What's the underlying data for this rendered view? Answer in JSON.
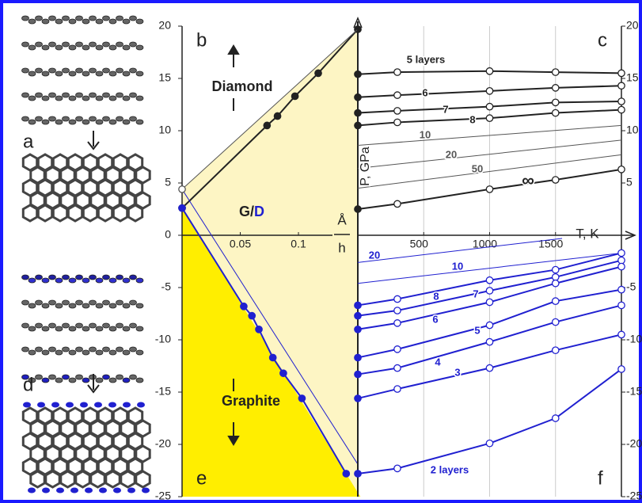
{
  "structure_labels": [
    "a",
    "d"
  ],
  "chart_data": [
    {
      "type": "line",
      "panel_labels": [
        "b",
        "e"
      ],
      "annotations": [
        "Diamond",
        "Graphite"
      ],
      "phase_label": [
        "G",
        "/",
        "D"
      ],
      "x_label": [
        "Å",
        "h"
      ],
      "xlim": [
        0,
        0.151
      ],
      "ylim": [
        -25,
        20
      ],
      "xticks": [
        0.05,
        0.1
      ],
      "yticks": [
        -25,
        -20,
        -15,
        -10,
        -5,
        0,
        5,
        10,
        15,
        20
      ],
      "series": [
        {
          "color": "#222222",
          "line_width": 2,
          "marker": "filled",
          "x": [
            0,
            0.073,
            0.082,
            0.097,
            0.117,
            0.151
          ],
          "values": [
            2.6,
            10.5,
            11.4,
            13.3,
            15.5,
            19.7
          ]
        },
        {
          "color": "#2020d0",
          "line_width": 2,
          "marker": "filled",
          "x": [
            0,
            0.053,
            0.06,
            0.066,
            0.078,
            0.087,
            0.103,
            0.141
          ],
          "values": [
            2.6,
            -6.8,
            -7.7,
            -9.0,
            -11.7,
            -13.2,
            -15.6,
            -22.8
          ]
        },
        {
          "color": "#555555",
          "line_width": 1,
          "marker": "none",
          "x": [
            0,
            0.151
          ],
          "values": [
            4.4,
            19.7
          ]
        },
        {
          "color": "#2020d0",
          "line_width": 1,
          "marker": "none",
          "x": [
            0,
            0.151
          ],
          "values": [
            4.4,
            -21.9
          ]
        },
        {
          "color": "#555555",
          "line_width": 0,
          "marker": "open",
          "x": [
            0
          ],
          "values": [
            4.4
          ]
        }
      ]
    },
    {
      "type": "line",
      "panel_labels": [
        "c",
        "f"
      ],
      "x_label": "T, K",
      "y_label": "P, GPa",
      "xlim": [
        0,
        2000
      ],
      "ylim": [
        -25,
        20
      ],
      "xticks": [
        500,
        1000,
        1500
      ],
      "yticks": [
        -25,
        -20,
        -15,
        -10,
        -5,
        5,
        10,
        15,
        20
      ],
      "grid": true,
      "series": [
        {
          "label": "5 layers",
          "color": "#222222",
          "line_width": 2,
          "marker": "first-filled",
          "x": [
            0,
            300,
            1000,
            1500,
            2000
          ],
          "values": [
            15.4,
            15.6,
            15.7,
            15.6,
            15.5
          ]
        },
        {
          "label": "6",
          "color": "#222222",
          "line_width": 2,
          "marker": "first-filled",
          "x": [
            0,
            300,
            1000,
            1500,
            2000
          ],
          "values": [
            13.2,
            13.4,
            13.8,
            14.1,
            14.3
          ]
        },
        {
          "label": "7",
          "color": "#222222",
          "line_width": 2,
          "marker": "first-filled",
          "x": [
            0,
            300,
            1000,
            1500,
            2000
          ],
          "values": [
            11.7,
            11.9,
            12.3,
            12.7,
            12.8
          ]
        },
        {
          "label": "8",
          "color": "#222222",
          "line_width": 2,
          "marker": "first-filled",
          "x": [
            0,
            300,
            1000,
            1500,
            2000
          ],
          "values": [
            10.5,
            10.8,
            11.2,
            11.7,
            12.0
          ]
        },
        {
          "label": "10",
          "color": "#555555",
          "line_width": 1,
          "marker": "none",
          "x": [
            0,
            2000
          ],
          "values": [
            8.6,
            10.5
          ]
        },
        {
          "label": "20",
          "color": "#555555",
          "line_width": 1,
          "marker": "none",
          "x": [
            0,
            2000
          ],
          "values": [
            6.4,
            9.1
          ]
        },
        {
          "label": "50",
          "color": "#555555",
          "line_width": 1,
          "marker": "none",
          "x": [
            0,
            2000
          ],
          "values": [
            4.5,
            7.7
          ]
        },
        {
          "label": "∞",
          "color": "#222222",
          "line_width": 2,
          "marker": "first-filled",
          "x": [
            0,
            300,
            1000,
            1500,
            2000
          ],
          "values": [
            2.5,
            3.0,
            4.4,
            5.3,
            6.3
          ]
        },
        {
          "label": "20",
          "color": "#2020d0",
          "line_width": 1,
          "marker": "none",
          "x": [
            0,
            1550
          ],
          "values": [
            -2.6,
            -0.3
          ]
        },
        {
          "label": "10",
          "color": "#2020d0",
          "line_width": 1,
          "marker": "none",
          "x": [
            0,
            2000
          ],
          "values": [
            -4.6,
            -1.7
          ]
        },
        {
          "label": "8",
          "color": "#2020d0",
          "line_width": 2,
          "marker": "first-filled",
          "x": [
            0,
            300,
            1000,
            1500,
            2000
          ],
          "values": [
            -6.7,
            -6.1,
            -4.3,
            -3.3,
            -1.7
          ]
        },
        {
          "label": "7",
          "color": "#2020d0",
          "line_width": 2,
          "marker": "first-filled",
          "x": [
            0,
            300,
            1000,
            1500,
            2000
          ],
          "values": [
            -7.7,
            -7.2,
            -5.3,
            -4.0,
            -2.4
          ]
        },
        {
          "label": "6",
          "color": "#2020d0",
          "line_width": 2,
          "marker": "first-filled",
          "x": [
            0,
            300,
            1000,
            1500,
            2000
          ],
          "values": [
            -9.0,
            -8.4,
            -6.4,
            -4.6,
            -3.0
          ]
        },
        {
          "label": "5",
          "color": "#2020d0",
          "line_width": 2,
          "marker": "first-filled",
          "x": [
            0,
            300,
            1000,
            1500,
            2000
          ],
          "values": [
            -11.7,
            -10.9,
            -8.6,
            -6.3,
            -5.2
          ]
        },
        {
          "label": "4",
          "color": "#2020d0",
          "line_width": 2,
          "marker": "first-filled",
          "x": [
            0,
            300,
            1000,
            1500,
            2000
          ],
          "values": [
            -13.3,
            -12.7,
            -10.2,
            -8.3,
            -6.7
          ]
        },
        {
          "label": "3",
          "color": "#2020d0",
          "line_width": 2,
          "marker": "first-filled",
          "x": [
            0,
            300,
            1000,
            1500,
            2000
          ],
          "values": [
            -15.6,
            -14.7,
            -12.7,
            -11.0,
            -9.5
          ]
        },
        {
          "label": "2 layers",
          "color": "#2020d0",
          "line_width": 2,
          "marker": "first-filled",
          "x": [
            0,
            300,
            1000,
            1500,
            2000
          ],
          "values": [
            -22.8,
            -22.3,
            -19.9,
            -17.5,
            -12.8
          ]
        }
      ]
    }
  ]
}
